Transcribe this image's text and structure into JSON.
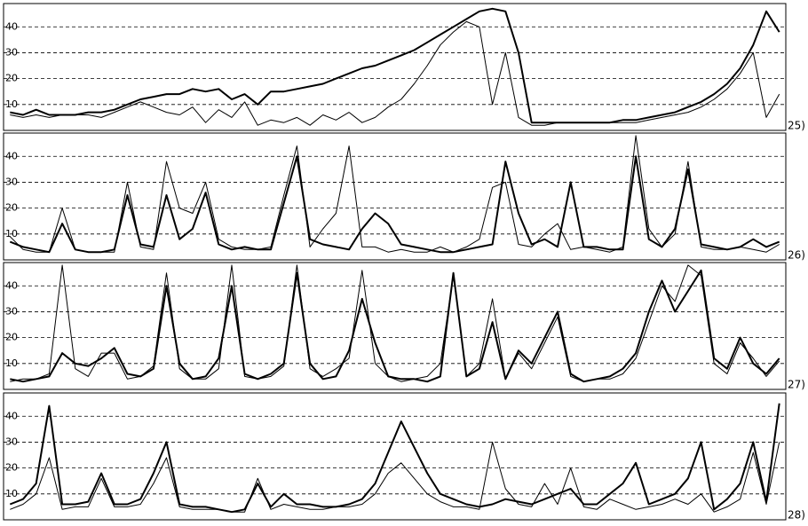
{
  "chart_data": [
    {
      "type": "line",
      "label": "25)",
      "ylim": [
        0,
        49
      ],
      "yticks": [
        10,
        20,
        30,
        40
      ],
      "grid": true,
      "series": [
        {
          "color": "#000000",
          "line_width": 2,
          "values": [
            7,
            6,
            8,
            6,
            6,
            6,
            7,
            7,
            8,
            10,
            12,
            13,
            14,
            14,
            16,
            15,
            16,
            12,
            14,
            10,
            15,
            15,
            16,
            17,
            18,
            20,
            22,
            24,
            25,
            27,
            29,
            31,
            34,
            37,
            40,
            43,
            46,
            47,
            46,
            30,
            3,
            3,
            3,
            3,
            3,
            3,
            3,
            4,
            4,
            5,
            6,
            7,
            9,
            11,
            14,
            18,
            24,
            33,
            46,
            38
          ]
        },
        {
          "color": "#000000",
          "line_width": 1,
          "values": [
            6,
            5,
            6,
            5,
            6,
            6,
            6,
            5,
            7,
            9,
            11,
            9,
            7,
            6,
            9,
            3,
            8,
            5,
            11,
            2,
            4,
            3,
            5,
            2,
            6,
            4,
            7,
            3,
            5,
            9,
            12,
            18,
            25,
            33,
            38,
            42,
            40,
            10,
            30,
            5,
            2,
            2,
            3,
            3,
            3,
            3,
            3,
            3,
            3,
            4,
            5,
            6,
            7,
            9,
            12,
            16,
            22,
            30,
            5,
            14
          ]
        }
      ]
    },
    {
      "type": "line",
      "label": "26)",
      "ylim": [
        0,
        49
      ],
      "yticks": [
        10,
        20,
        30,
        40
      ],
      "grid": true,
      "series": [
        {
          "color": "#000000",
          "line_width": 2,
          "values": [
            7,
            5,
            4,
            3,
            14,
            4,
            3,
            3,
            4,
            25,
            6,
            5,
            25,
            8,
            12,
            26,
            6,
            4,
            5,
            4,
            4,
            22,
            40,
            8,
            6,
            5,
            4,
            12,
            18,
            14,
            6,
            5,
            4,
            3,
            3,
            4,
            5,
            6,
            38,
            18,
            6,
            8,
            5,
            30,
            5,
            5,
            4,
            4,
            40,
            8,
            5,
            12,
            35,
            6,
            5,
            4,
            5,
            8,
            5,
            7
          ]
        },
        {
          "color": "#000000",
          "line_width": 1,
          "values": [
            9,
            4,
            3,
            3,
            20,
            4,
            3,
            3,
            3,
            30,
            5,
            4,
            38,
            20,
            18,
            30,
            8,
            5,
            4,
            4,
            5,
            25,
            44,
            5,
            12,
            18,
            44,
            5,
            5,
            3,
            4,
            3,
            3,
            5,
            3,
            5,
            8,
            28,
            30,
            6,
            5,
            10,
            14,
            4,
            5,
            4,
            3,
            5,
            48,
            12,
            5,
            10,
            38,
            5,
            4,
            4,
            5,
            4,
            3,
            6
          ]
        }
      ]
    },
    {
      "type": "line",
      "label": "27)",
      "ylim": [
        0,
        49
      ],
      "yticks": [
        10,
        20,
        30,
        40
      ],
      "grid": true,
      "series": [
        {
          "color": "#000000",
          "line_width": 2,
          "values": [
            4,
            3,
            4,
            5,
            14,
            10,
            9,
            12,
            16,
            6,
            5,
            8,
            40,
            10,
            4,
            5,
            12,
            40,
            6,
            4,
            6,
            10,
            45,
            10,
            4,
            5,
            15,
            35,
            18,
            5,
            4,
            4,
            3,
            5,
            45,
            5,
            8,
            26,
            4,
            15,
            10,
            20,
            30,
            6,
            3,
            4,
            5,
            8,
            14,
            30,
            42,
            30,
            38,
            46,
            12,
            8,
            20,
            10,
            6,
            12
          ]
        },
        {
          "color": "#000000",
          "line_width": 1,
          "values": [
            3,
            4,
            4,
            6,
            48,
            8,
            5,
            14,
            14,
            4,
            5,
            9,
            45,
            8,
            4,
            4,
            8,
            48,
            5,
            4,
            5,
            9,
            48,
            8,
            5,
            8,
            12,
            46,
            10,
            5,
            3,
            4,
            5,
            10,
            44,
            5,
            10,
            35,
            4,
            14,
            8,
            18,
            28,
            5,
            3,
            4,
            4,
            6,
            12,
            26,
            40,
            34,
            48,
            44,
            10,
            6,
            18,
            12,
            5,
            11
          ]
        }
      ]
    },
    {
      "type": "line",
      "label": "28)",
      "ylim": [
        0,
        49
      ],
      "yticks": [
        10,
        20,
        30,
        40
      ],
      "grid": true,
      "series": [
        {
          "color": "#000000",
          "line_width": 2,
          "values": [
            6,
            8,
            14,
            44,
            6,
            6,
            7,
            18,
            6,
            6,
            8,
            18,
            30,
            6,
            5,
            5,
            4,
            3,
            4,
            14,
            5,
            10,
            6,
            6,
            5,
            5,
            6,
            8,
            14,
            26,
            38,
            28,
            18,
            10,
            8,
            6,
            5,
            6,
            8,
            7,
            6,
            8,
            10,
            12,
            6,
            6,
            10,
            14,
            22,
            6,
            8,
            10,
            16,
            30,
            4,
            8,
            14,
            30,
            7,
            45
          ]
        },
        {
          "color": "#000000",
          "line_width": 1,
          "values": [
            4,
            6,
            10,
            24,
            4,
            5,
            5,
            16,
            5,
            5,
            6,
            14,
            24,
            5,
            4,
            4,
            4,
            3,
            3,
            16,
            4,
            6,
            5,
            4,
            4,
            5,
            5,
            6,
            10,
            18,
            22,
            16,
            10,
            7,
            5,
            5,
            4,
            30,
            12,
            6,
            5,
            14,
            6,
            20,
            5,
            4,
            8,
            6,
            4,
            5,
            6,
            8,
            6,
            10,
            3,
            5,
            8,
            26,
            6,
            30
          ]
        }
      ]
    }
  ]
}
